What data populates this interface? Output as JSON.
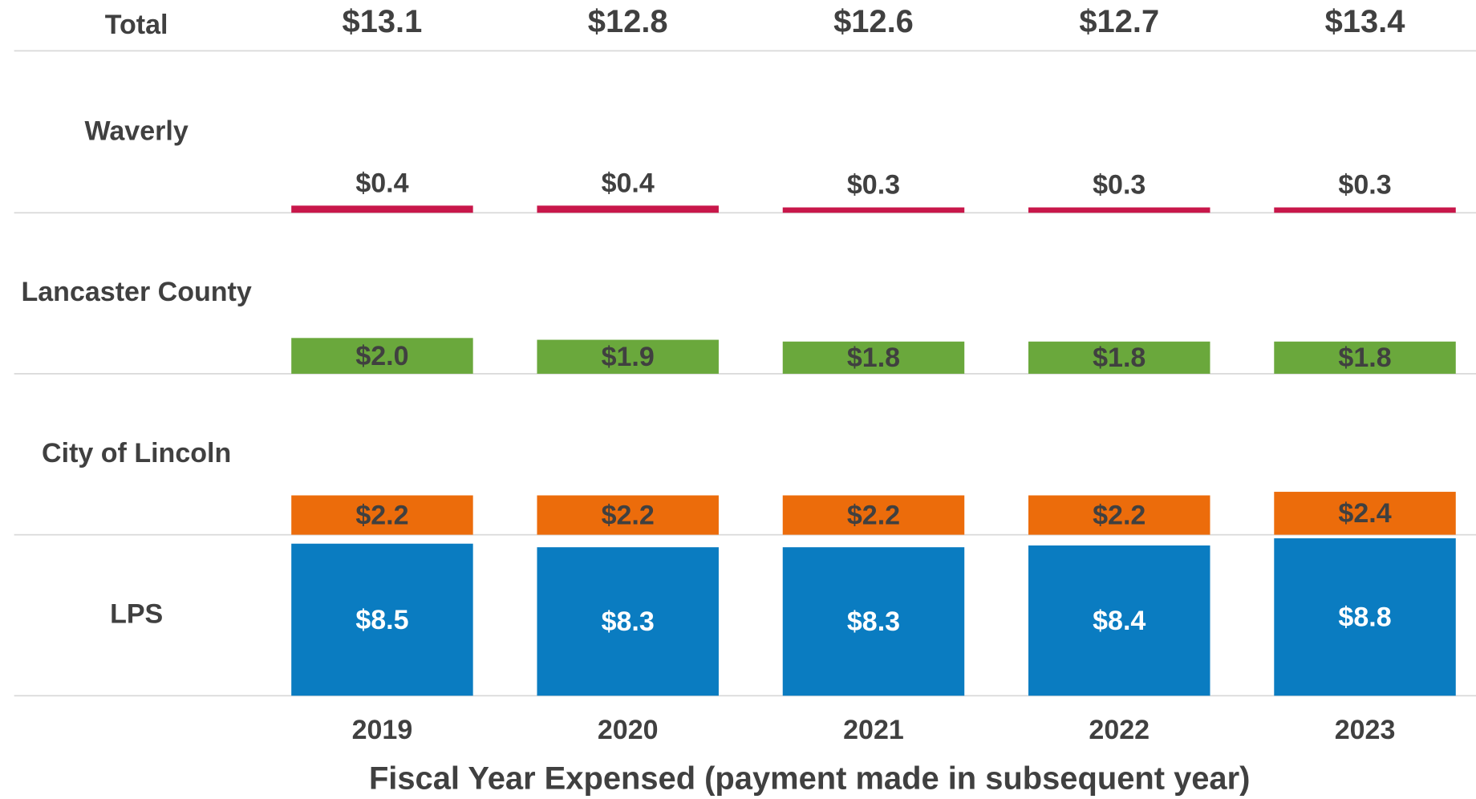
{
  "chart_data": {
    "type": "bar",
    "categories": [
      "2019",
      "2020",
      "2021",
      "2022",
      "2023"
    ],
    "x_label": "Fiscal Year Expensed (payment made in subsequent year)",
    "ylim": [
      0,
      9
    ],
    "series": [
      {
        "name": "LPS",
        "color": "#0a7cc1",
        "label_color": "#ffffff",
        "values": [
          8.5,
          8.3,
          8.3,
          8.4,
          8.8
        ],
        "value_labels": [
          "$8.5",
          "$8.3",
          "$8.3",
          "$8.4",
          "$8.8"
        ]
      },
      {
        "name": "City of Lincoln",
        "color": "#ec6c0b",
        "label_color": "#404040",
        "values": [
          2.2,
          2.2,
          2.2,
          2.2,
          2.4
        ],
        "value_labels": [
          "$2.2",
          "$2.2",
          "$2.2",
          "$2.2",
          "$2.4"
        ]
      },
      {
        "name": "Lancaster County",
        "color": "#6aa83c",
        "label_color": "#404040",
        "values": [
          2.0,
          1.9,
          1.8,
          1.8,
          1.8
        ],
        "value_labels": [
          "$2.0",
          "$1.9",
          "$1.8",
          "$1.8",
          "$1.8"
        ]
      },
      {
        "name": "Waverly",
        "color": "#c8174a",
        "label_color": "#404040",
        "values": [
          0.4,
          0.4,
          0.3,
          0.3,
          0.3
        ],
        "value_labels": [
          "$0.4",
          "$0.4",
          "$0.3",
          "$0.3",
          "$0.3"
        ]
      }
    ],
    "totals": {
      "name": "Total",
      "values": [
        13.1,
        12.8,
        12.6,
        12.7,
        13.4
      ],
      "value_labels": [
        "$13.1",
        "$12.8",
        "$12.6",
        "$12.7",
        "$13.4"
      ]
    }
  }
}
